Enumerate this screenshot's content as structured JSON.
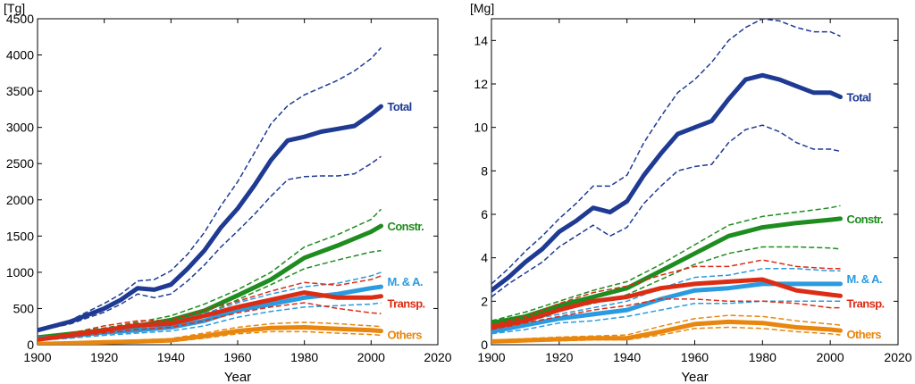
{
  "chart_data": [
    {
      "type": "line",
      "unit": "[Tg]",
      "xlabel": "Year",
      "xlim": [
        1900,
        2020
      ],
      "ylim": [
        0,
        4500
      ],
      "xticks": [
        1900,
        1920,
        1940,
        1960,
        1980,
        2000,
        2020
      ],
      "yticks": [
        0,
        500,
        1000,
        1500,
        2000,
        2500,
        3000,
        3500,
        4000,
        4500
      ],
      "series": [
        {
          "name": "Total",
          "color": "#1f3a93",
          "bold": true,
          "x": [
            1900,
            1910,
            1920,
            1925,
            1930,
            1935,
            1940,
            1945,
            1950,
            1955,
            1960,
            1965,
            1970,
            1975,
            1980,
            1985,
            1990,
            1995,
            2000,
            2003
          ],
          "values": [
            200,
            320,
            500,
            620,
            780,
            760,
            830,
            1050,
            1300,
            1620,
            1880,
            2200,
            2550,
            2820,
            2870,
            2940,
            2980,
            3020,
            3180,
            3290
          ],
          "upper": [
            200,
            340,
            570,
            700,
            880,
            900,
            1020,
            1250,
            1550,
            1920,
            2250,
            2650,
            3050,
            3300,
            3450,
            3550,
            3650,
            3780,
            3950,
            4100
          ],
          "lower": [
            190,
            290,
            450,
            560,
            700,
            650,
            700,
            880,
            1100,
            1350,
            1570,
            1800,
            2050,
            2280,
            2320,
            2330,
            2330,
            2360,
            2500,
            2600
          ]
        },
        {
          "name": "Constr.",
          "color": "#1e8c1e",
          "bold": true,
          "x": [
            1900,
            1910,
            1920,
            1930,
            1940,
            1950,
            1960,
            1970,
            1980,
            1990,
            2000,
            2003
          ],
          "values": [
            100,
            150,
            200,
            260,
            340,
            470,
            680,
            900,
            1200,
            1370,
            1560,
            1640
          ],
          "upper": [
            110,
            170,
            230,
            310,
            400,
            560,
            760,
            1000,
            1350,
            1520,
            1730,
            1870
          ],
          "lower": [
            90,
            130,
            180,
            230,
            300,
            410,
            620,
            830,
            1050,
            1170,
            1280,
            1300
          ]
        },
        {
          "name": "M. & A.",
          "color": "#2a9be0",
          "bold": true,
          "x": [
            1900,
            1910,
            1920,
            1930,
            1940,
            1950,
            1960,
            1970,
            1980,
            1990,
            2000,
            2003
          ],
          "values": [
            80,
            120,
            170,
            200,
            240,
            330,
            480,
            560,
            650,
            700,
            780,
            800
          ],
          "upper": [
            100,
            150,
            210,
            250,
            310,
            430,
            580,
            700,
            800,
            850,
            950,
            1000
          ],
          "lower": [
            60,
            90,
            130,
            160,
            190,
            260,
            380,
            460,
            520,
            540,
            560,
            580
          ]
        },
        {
          "name": "Transp.",
          "color": "#dc2c14",
          "bold": true,
          "x": [
            1900,
            1910,
            1920,
            1930,
            1940,
            1950,
            1960,
            1970,
            1980,
            1990,
            2000,
            2003
          ],
          "values": [
            70,
            130,
            200,
            270,
            290,
            400,
            520,
            620,
            720,
            650,
            650,
            670
          ],
          "upper": [
            90,
            160,
            260,
            330,
            340,
            480,
            600,
            740,
            860,
            820,
            900,
            950
          ],
          "lower": [
            60,
            110,
            160,
            210,
            240,
            330,
            440,
            520,
            580,
            500,
            440,
            430
          ]
        },
        {
          "name": "Others",
          "color": "#e8860e",
          "bold": true,
          "x": [
            1900,
            1910,
            1920,
            1930,
            1940,
            1950,
            1960,
            1970,
            1980,
            1990,
            2000,
            2003
          ],
          "values": [
            10,
            20,
            35,
            45,
            60,
            120,
            190,
            230,
            240,
            220,
            200,
            190
          ],
          "upper": [
            20,
            30,
            50,
            65,
            85,
            160,
            240,
            290,
            310,
            290,
            260,
            250
          ],
          "lower": [
            5,
            10,
            20,
            30,
            40,
            90,
            150,
            180,
            180,
            160,
            140,
            130
          ]
        }
      ]
    },
    {
      "type": "line",
      "unit": "[Mg]",
      "xlabel": "Year",
      "xlim": [
        1900,
        2020
      ],
      "ylim": [
        0,
        15
      ],
      "xticks": [
        1900,
        1920,
        1940,
        1960,
        1980,
        2000,
        2020
      ],
      "yticks": [
        0,
        2,
        4,
        6,
        8,
        10,
        12,
        14
      ],
      "series": [
        {
          "name": "Total",
          "color": "#1f3a93",
          "bold": true,
          "x": [
            1900,
            1905,
            1910,
            1915,
            1920,
            1925,
            1930,
            1935,
            1940,
            1945,
            1950,
            1955,
            1960,
            1965,
            1970,
            1975,
            1980,
            1985,
            1990,
            1995,
            2000,
            2003
          ],
          "values": [
            2.5,
            3.1,
            3.8,
            4.4,
            5.2,
            5.7,
            6.3,
            6.1,
            6.6,
            7.8,
            8.8,
            9.7,
            10.0,
            10.3,
            11.3,
            12.2,
            12.4,
            12.2,
            11.9,
            11.6,
            11.6,
            11.4
          ],
          "upper": [
            2.8,
            3.5,
            4.3,
            5.0,
            5.8,
            6.5,
            7.3,
            7.3,
            7.8,
            9.3,
            10.5,
            11.6,
            12.2,
            13.0,
            14.0,
            14.6,
            15.0,
            14.9,
            14.6,
            14.4,
            14.4,
            14.2
          ],
          "lower": [
            2.2,
            2.8,
            3.3,
            3.8,
            4.5,
            5.0,
            5.5,
            5.0,
            5.4,
            6.5,
            7.3,
            8.0,
            8.2,
            8.3,
            9.3,
            9.9,
            10.1,
            9.8,
            9.3,
            9.0,
            9.0,
            8.9
          ]
        },
        {
          "name": "Constr.",
          "color": "#1e8c1e",
          "bold": true,
          "x": [
            1900,
            1910,
            1920,
            1930,
            1940,
            1950,
            1960,
            1970,
            1980,
            1990,
            2000,
            2003
          ],
          "values": [
            1.0,
            1.3,
            1.8,
            2.2,
            2.6,
            3.4,
            4.2,
            5.0,
            5.4,
            5.6,
            5.75,
            5.8
          ],
          "upper": [
            1.1,
            1.5,
            2.0,
            2.5,
            2.9,
            3.7,
            4.6,
            5.5,
            5.9,
            6.1,
            6.3,
            6.4
          ],
          "lower": [
            0.9,
            1.2,
            1.6,
            1.9,
            2.3,
            3.0,
            3.7,
            4.2,
            4.5,
            4.5,
            4.45,
            4.4
          ]
        },
        {
          "name": "M. & A.",
          "color": "#2a9be0",
          "bold": true,
          "x": [
            1900,
            1910,
            1920,
            1930,
            1940,
            1950,
            1960,
            1970,
            1980,
            1990,
            2000,
            2003
          ],
          "values": [
            0.6,
            0.9,
            1.2,
            1.4,
            1.6,
            2.1,
            2.5,
            2.6,
            2.8,
            2.8,
            2.8,
            2.8
          ],
          "upper": [
            0.7,
            1.1,
            1.4,
            1.7,
            2.0,
            2.6,
            3.1,
            3.2,
            3.5,
            3.5,
            3.4,
            3.4
          ],
          "lower": [
            0.5,
            0.7,
            1.0,
            1.1,
            1.3,
            1.6,
            1.9,
            1.9,
            2.0,
            2.0,
            2.0,
            2.0
          ]
        },
        {
          "name": "Transp.",
          "color": "#dc2c14",
          "bold": true,
          "x": [
            1900,
            1910,
            1920,
            1930,
            1940,
            1950,
            1960,
            1970,
            1980,
            1990,
            2000,
            2003
          ],
          "values": [
            0.8,
            1.1,
            1.6,
            2.0,
            2.2,
            2.6,
            2.8,
            2.9,
            3.0,
            2.5,
            2.3,
            2.25
          ],
          "upper": [
            0.9,
            1.3,
            1.9,
            2.4,
            2.7,
            3.2,
            3.6,
            3.6,
            3.9,
            3.6,
            3.5,
            3.5
          ],
          "lower": [
            0.7,
            1.0,
            1.3,
            1.6,
            1.8,
            2.1,
            2.1,
            2.0,
            2.0,
            1.9,
            1.7,
            1.7
          ]
        },
        {
          "name": "Others",
          "color": "#e8860e",
          "bold": true,
          "x": [
            1900,
            1910,
            1920,
            1930,
            1940,
            1950,
            1960,
            1970,
            1980,
            1990,
            2000,
            2003
          ],
          "values": [
            0.15,
            0.2,
            0.25,
            0.3,
            0.3,
            0.6,
            0.95,
            1.05,
            1.0,
            0.8,
            0.7,
            0.65
          ],
          "upper": [
            0.2,
            0.28,
            0.35,
            0.4,
            0.45,
            0.85,
            1.2,
            1.35,
            1.3,
            1.1,
            0.95,
            0.9
          ],
          "lower": [
            0.1,
            0.14,
            0.18,
            0.22,
            0.22,
            0.45,
            0.75,
            0.8,
            0.75,
            0.6,
            0.5,
            0.45
          ]
        }
      ]
    }
  ]
}
